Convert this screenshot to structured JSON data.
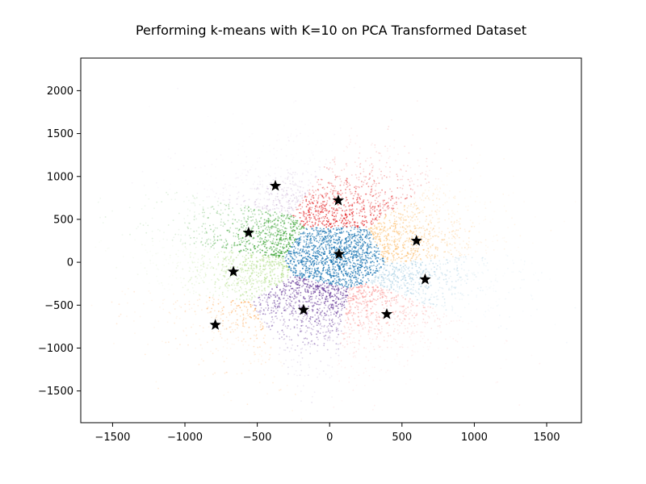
{
  "chart_data": {
    "type": "scatter",
    "title": "Performing k-means with K=10 on PCA Transformed Dataset",
    "xlabel": "",
    "ylabel": "",
    "xlim": [
      -1720,
      1740
    ],
    "ylim": [
      -1870,
      2380
    ],
    "x_ticks": [
      -1500,
      -1000,
      -500,
      0,
      500,
      1000,
      1500
    ],
    "y_ticks": [
      -1500,
      -1000,
      -500,
      0,
      500,
      1000,
      1500,
      2000
    ],
    "grid": false,
    "legend": "none",
    "centroid_marker": "star",
    "centroid_color": "#000000",
    "clusters": [
      {
        "color": "#1f78b4",
        "centroid": [
          65,
          95
        ],
        "spread": [
          190,
          150
        ]
      },
      {
        "color": "#a6cee3",
        "centroid": [
          660,
          -200
        ],
        "spread": [
          200,
          150
        ]
      },
      {
        "color": "#fdbf6f",
        "centroid": [
          600,
          250
        ],
        "spread": [
          220,
          170
        ]
      },
      {
        "color": "#e31a1c",
        "centroid": [
          60,
          720
        ],
        "spread": [
          200,
          190
        ]
      },
      {
        "color": "#cab2d6",
        "centroid": [
          -375,
          890
        ],
        "spread": [
          230,
          200
        ]
      },
      {
        "color": "#33a02c",
        "centroid": [
          -560,
          345
        ],
        "spread": [
          230,
          140
        ]
      },
      {
        "color": "#b2df8a",
        "centroid": [
          -665,
          -110
        ],
        "spread": [
          280,
          150
        ]
      },
      {
        "color": "#ff7f00",
        "centroid": [
          -790,
          -730
        ],
        "spread": [
          220,
          190
        ]
      },
      {
        "color": "#6a3d9a",
        "centroid": [
          -180,
          -555
        ],
        "spread": [
          190,
          200
        ]
      },
      {
        "color": "#fb9a99",
        "centroid": [
          395,
          -605
        ],
        "spread": [
          220,
          190
        ]
      }
    ]
  }
}
